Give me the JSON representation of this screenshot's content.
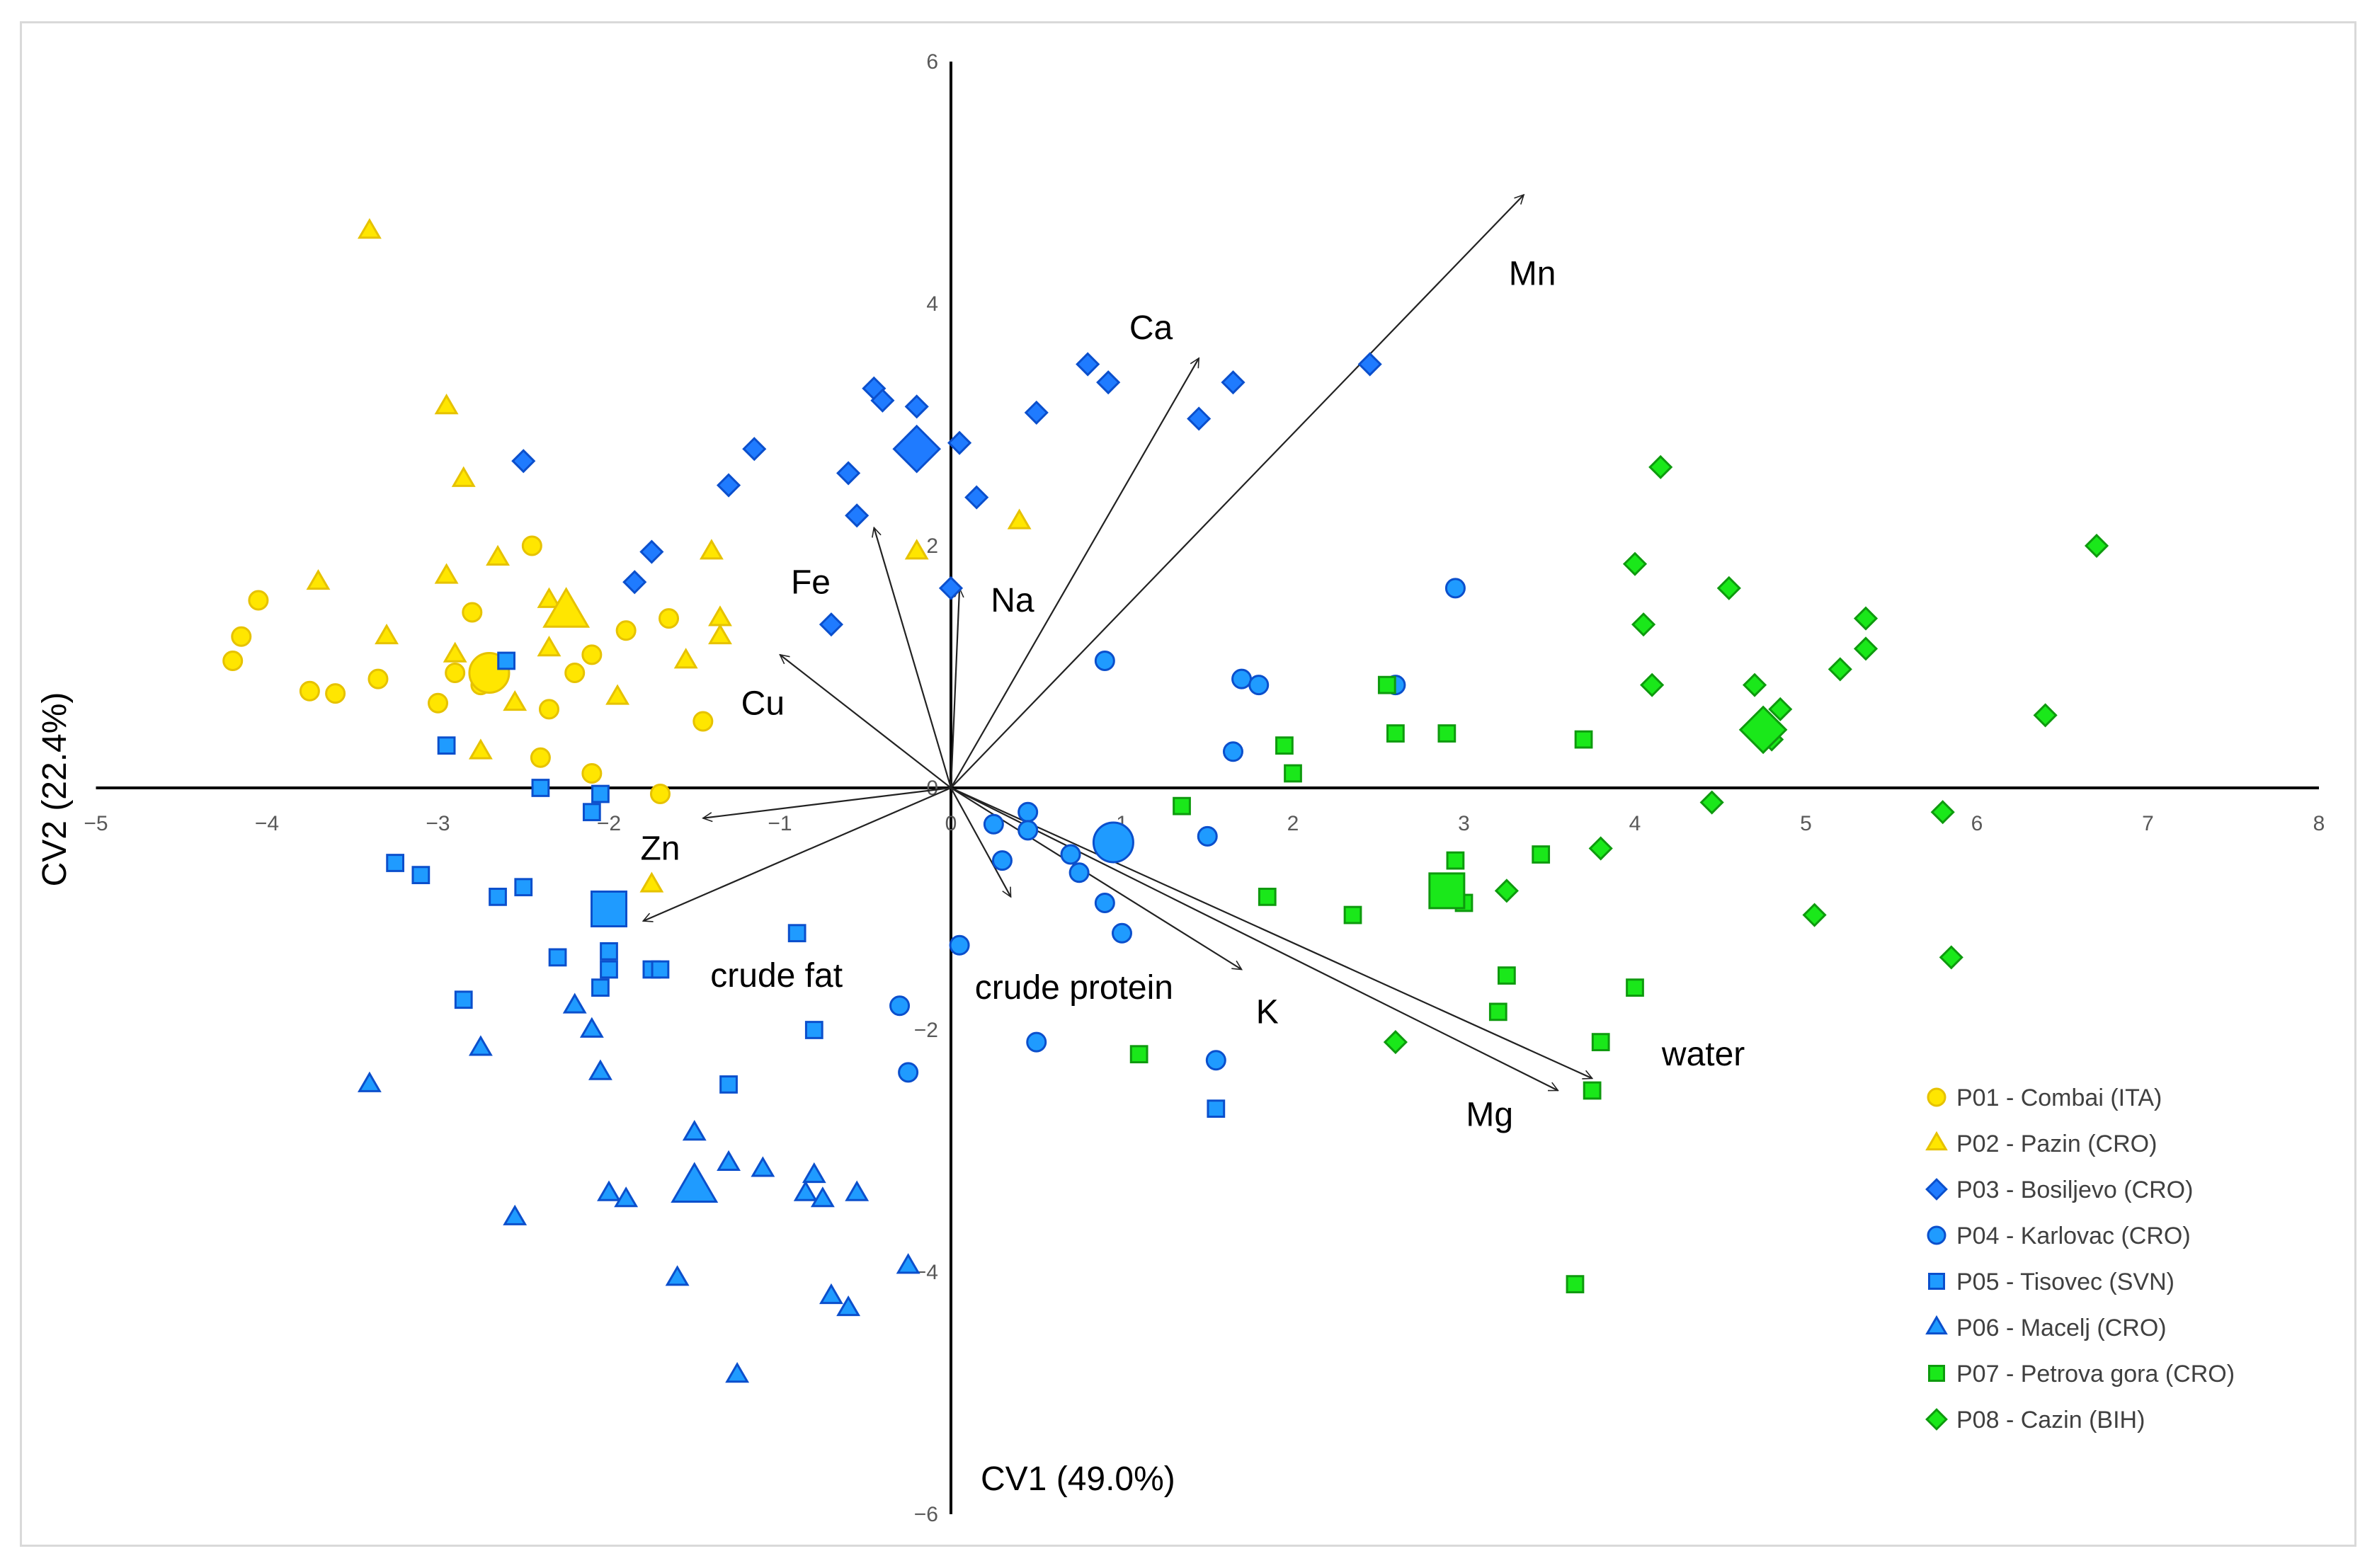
{
  "chart_data": {
    "type": "scatter",
    "subtype": "canonical discriminant biplot",
    "xlabel": "CV1 (49.0%)",
    "ylabel": "CV2 (22.4%)",
    "xlim": [
      -5,
      8
    ],
    "ylim": [
      -6,
      6
    ],
    "xticks": [
      -5,
      -4,
      -3,
      -2,
      -1,
      0,
      1,
      2,
      3,
      4,
      5,
      6,
      7,
      8
    ],
    "yticks": [
      -6,
      -4,
      -2,
      0,
      2,
      4,
      6
    ],
    "tick_labels_x": [
      "−5",
      "−4",
      "−3",
      "−2",
      "−1",
      "0",
      "1",
      "2",
      "3",
      "4",
      "5",
      "6",
      "7",
      "8"
    ],
    "tick_labels_y": [
      "−6",
      "−4",
      "−2",
      "0",
      "2",
      "4",
      "6"
    ],
    "legend_position": "bottom-right",
    "series": [
      {
        "name": "P01 - Combai (ITA)",
        "marker": "circle",
        "color": "#FFE600",
        "stroke": "#E6C200",
        "centroid": [
          -2.7,
          0.95
        ],
        "points": [
          [
            -4.2,
            1.05
          ],
          [
            -4.15,
            1.25
          ],
          [
            -4.05,
            1.55
          ],
          [
            -3.75,
            0.8
          ],
          [
            -3.6,
            0.78
          ],
          [
            -3.35,
            0.9
          ],
          [
            -3.0,
            0.7
          ],
          [
            -2.9,
            0.95
          ],
          [
            -2.8,
            1.45
          ],
          [
            -2.75,
            0.85
          ],
          [
            -2.45,
            2.0
          ],
          [
            -2.4,
            0.25
          ],
          [
            -2.35,
            0.65
          ],
          [
            -2.2,
            0.95
          ],
          [
            -2.1,
            1.1
          ],
          [
            -2.1,
            0.12
          ],
          [
            -1.9,
            1.3
          ],
          [
            -1.65,
            1.4
          ],
          [
            -1.7,
            -0.05
          ],
          [
            -1.45,
            0.55
          ]
        ]
      },
      {
        "name": "P02 - Pazin (CRO)",
        "marker": "triangle",
        "color": "#FFE600",
        "stroke": "#E6C200",
        "centroid": [
          -2.25,
          1.45
        ],
        "points": [
          [
            -3.4,
            4.6
          ],
          [
            -3.7,
            1.7
          ],
          [
            -3.3,
            1.25
          ],
          [
            -2.95,
            3.15
          ],
          [
            -2.95,
            1.75
          ],
          [
            -2.9,
            1.1
          ],
          [
            -2.85,
            2.55
          ],
          [
            -2.75,
            0.3
          ],
          [
            -2.65,
            1.9
          ],
          [
            -2.55,
            0.7
          ],
          [
            -2.35,
            1.55
          ],
          [
            -2.35,
            1.15
          ],
          [
            -1.95,
            0.75
          ],
          [
            -1.75,
            -0.8
          ],
          [
            -1.55,
            1.05
          ],
          [
            -1.35,
            1.4
          ],
          [
            -1.35,
            1.25
          ],
          [
            -1.4,
            1.95
          ],
          [
            -0.2,
            1.95
          ],
          [
            0.4,
            2.2
          ]
        ]
      },
      {
        "name": "P03 - Bosiljevo (CRO)",
        "marker": "diamond",
        "color": "#1F7BFF",
        "stroke": "#0B4FCC",
        "centroid": [
          -0.2,
          2.8
        ],
        "points": [
          [
            -2.5,
            2.7
          ],
          [
            -1.85,
            1.7
          ],
          [
            -1.75,
            1.95
          ],
          [
            -1.3,
            2.5
          ],
          [
            -1.15,
            2.8
          ],
          [
            -0.7,
            1.35
          ],
          [
            -0.6,
            2.6
          ],
          [
            -0.55,
            2.25
          ],
          [
            -0.45,
            3.3
          ],
          [
            -0.4,
            3.2
          ],
          [
            -0.2,
            3.15
          ],
          [
            -0.2,
            2.9
          ],
          [
            0.15,
            2.4
          ],
          [
            0.05,
            2.85
          ],
          [
            0.5,
            3.1
          ],
          [
            0.8,
            3.5
          ],
          [
            0.92,
            3.35
          ],
          [
            1.45,
            3.05
          ],
          [
            1.65,
            3.35
          ],
          [
            2.45,
            3.5
          ],
          [
            0.0,
            1.65
          ]
        ]
      },
      {
        "name": "P04 - Karlovac (CRO)",
        "marker": "circle",
        "color": "#1F9BFF",
        "stroke": "#0B4FCC",
        "centroid": [
          0.95,
          -0.45
        ],
        "points": [
          [
            0.9,
            1.05
          ],
          [
            1.7,
            0.9
          ],
          [
            1.8,
            0.85
          ],
          [
            2.6,
            0.85
          ],
          [
            2.95,
            1.65
          ],
          [
            1.65,
            0.3
          ],
          [
            1.5,
            -0.4
          ],
          [
            0.45,
            -0.2
          ],
          [
            0.45,
            -0.35
          ],
          [
            0.25,
            -0.3
          ],
          [
            0.3,
            -0.6
          ],
          [
            0.7,
            -0.55
          ],
          [
            0.75,
            -0.7
          ],
          [
            0.9,
            -0.95
          ],
          [
            1.0,
            -1.2
          ],
          [
            0.05,
            -1.3
          ],
          [
            -0.3,
            -1.8
          ],
          [
            -0.25,
            -2.35
          ],
          [
            0.5,
            -2.1
          ],
          [
            1.55,
            -2.25
          ]
        ]
      },
      {
        "name": "P05 - Tisovec (SVN)",
        "marker": "square",
        "color": "#1F9BFF",
        "stroke": "#0B4FCC",
        "centroid": [
          -2.0,
          -1.0
        ],
        "points": [
          [
            -2.6,
            1.05
          ],
          [
            -2.95,
            0.35
          ],
          [
            -2.4,
            0.0
          ],
          [
            -2.05,
            -0.05
          ],
          [
            -2.1,
            -0.2
          ],
          [
            -3.25,
            -0.62
          ],
          [
            -3.1,
            -0.72
          ],
          [
            -2.65,
            -0.9
          ],
          [
            -2.5,
            -0.82
          ],
          [
            -2.3,
            -1.4
          ],
          [
            -2.0,
            -1.35
          ],
          [
            -2.0,
            -1.5
          ],
          [
            -2.05,
            -1.65
          ],
          [
            -1.75,
            -1.5
          ],
          [
            -1.7,
            -1.5
          ],
          [
            -2.85,
            -1.75
          ],
          [
            -0.9,
            -1.2
          ],
          [
            -0.8,
            -2.0
          ],
          [
            -1.3,
            -2.45
          ],
          [
            1.55,
            -2.65
          ]
        ]
      },
      {
        "name": "P06 - Macelj (CRO)",
        "marker": "triangle",
        "color": "#1F9BFF",
        "stroke": "#0B4FCC",
        "centroid": [
          -1.5,
          -3.3
        ],
        "points": [
          [
            -3.4,
            -2.45
          ],
          [
            -2.75,
            -2.15
          ],
          [
            -2.2,
            -1.8
          ],
          [
            -2.1,
            -2.0
          ],
          [
            -2.05,
            -2.35
          ],
          [
            -1.5,
            -2.85
          ],
          [
            -1.3,
            -3.1
          ],
          [
            -1.1,
            -3.15
          ],
          [
            -0.85,
            -3.35
          ],
          [
            -0.8,
            -3.2
          ],
          [
            -0.75,
            -3.4
          ],
          [
            -0.55,
            -3.35
          ],
          [
            -2.55,
            -3.55
          ],
          [
            -2.0,
            -3.35
          ],
          [
            -1.9,
            -3.4
          ],
          [
            -1.6,
            -4.05
          ],
          [
            -0.7,
            -4.2
          ],
          [
            -0.6,
            -4.3
          ],
          [
            -1.25,
            -4.85
          ],
          [
            -0.25,
            -3.95
          ]
        ]
      },
      {
        "name": "P07 - Petrova gora (CRO)",
        "marker": "square",
        "color": "#1AE81A",
        "stroke": "#0E9A0E",
        "centroid": [
          2.9,
          -0.85
        ],
        "points": [
          [
            2.55,
            0.85
          ],
          [
            2.6,
            0.45
          ],
          [
            2.9,
            0.45
          ],
          [
            3.7,
            0.4
          ],
          [
            1.95,
            0.35
          ],
          [
            2.0,
            0.12
          ],
          [
            1.35,
            -0.15
          ],
          [
            2.95,
            -0.6
          ],
          [
            2.95,
            -0.9
          ],
          [
            3.45,
            -0.55
          ],
          [
            1.85,
            -0.9
          ],
          [
            2.35,
            -1.05
          ],
          [
            3.25,
            -1.55
          ],
          [
            3.2,
            -1.85
          ],
          [
            3.0,
            -0.95
          ],
          [
            4.0,
            -1.65
          ],
          [
            3.8,
            -2.1
          ],
          [
            3.75,
            -2.5
          ],
          [
            1.1,
            -2.2
          ],
          [
            3.65,
            -4.1
          ]
        ]
      },
      {
        "name": "P08 - Cazin (BIH)",
        "marker": "diamond",
        "color": "#1AE81A",
        "stroke": "#0E9A0E",
        "centroid": [
          4.75,
          0.48
        ],
        "points": [
          [
            4.15,
            2.65
          ],
          [
            4.0,
            1.85
          ],
          [
            4.05,
            1.35
          ],
          [
            4.1,
            0.85
          ],
          [
            4.55,
            1.65
          ],
          [
            4.7,
            0.85
          ],
          [
            4.85,
            0.65
          ],
          [
            4.8,
            0.4
          ],
          [
            5.35,
            1.4
          ],
          [
            5.35,
            1.15
          ],
          [
            5.2,
            0.98
          ],
          [
            6.7,
            2.0
          ],
          [
            6.4,
            0.6
          ],
          [
            5.8,
            -0.2
          ],
          [
            4.45,
            -0.12
          ],
          [
            3.8,
            -0.5
          ],
          [
            3.25,
            -0.85
          ],
          [
            5.05,
            -1.05
          ],
          [
            5.85,
            -1.4
          ],
          [
            2.6,
            -2.1
          ]
        ]
      }
    ],
    "loadings": [
      {
        "label": "Mn",
        "end": [
          3.35,
          4.9
        ],
        "label_at": [
          3.4,
          4.25
        ]
      },
      {
        "label": "Ca",
        "end": [
          1.45,
          3.55
        ],
        "label_at": [
          1.17,
          3.8
        ]
      },
      {
        "label": "Fe",
        "end": [
          -0.45,
          2.15
        ],
        "label_at": [
          -0.82,
          1.7
        ]
      },
      {
        "label": "Na",
        "end": [
          0.05,
          1.65
        ],
        "label_at": [
          0.36,
          1.55
        ]
      },
      {
        "label": "Cu",
        "end": [
          -1.0,
          1.1
        ],
        "label_at": [
          -1.1,
          0.7
        ]
      },
      {
        "label": "Zn",
        "end": [
          -1.45,
          -0.25
        ],
        "label_at": [
          -1.7,
          -0.5
        ]
      },
      {
        "label": "crude fat",
        "end": [
          -1.8,
          -1.1
        ],
        "label_at": [
          -1.02,
          -1.55
        ]
      },
      {
        "label": "crude protein",
        "end": [
          0.35,
          -0.9
        ],
        "label_at": [
          0.72,
          -1.65
        ]
      },
      {
        "label": "K",
        "end": [
          1.7,
          -1.5
        ],
        "label_at": [
          1.85,
          -1.85
        ]
      },
      {
        "label": "water",
        "end": [
          3.75,
          -2.4
        ],
        "label_at": [
          4.4,
          -2.2
        ]
      },
      {
        "label": "Mg",
        "end": [
          3.55,
          -2.5
        ],
        "label_at": [
          3.15,
          -2.7
        ]
      }
    ]
  }
}
